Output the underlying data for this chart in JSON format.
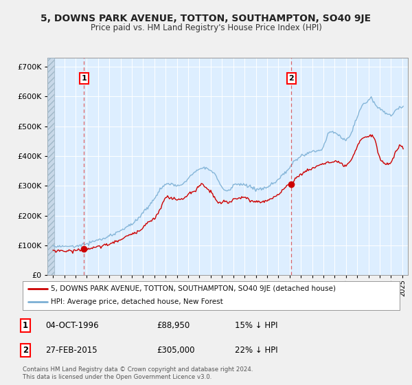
{
  "title": "5, DOWNS PARK AVENUE, TOTTON, SOUTHAMPTON, SO40 9JE",
  "subtitle": "Price paid vs. HM Land Registry's House Price Index (HPI)",
  "legend_line1": "5, DOWNS PARK AVENUE, TOTTON, SOUTHAMPTON, SO40 9JE (detached house)",
  "legend_line2": "HPI: Average price, detached house, New Forest",
  "footnote": "Contains HM Land Registry data © Crown copyright and database right 2024.\nThis data is licensed under the Open Government Licence v3.0.",
  "annotation1_label": "1",
  "annotation1_date": "04-OCT-1996",
  "annotation1_price": "£88,950",
  "annotation1_hpi": "15% ↓ HPI",
  "annotation2_label": "2",
  "annotation2_date": "27-FEB-2015",
  "annotation2_price": "£305,000",
  "annotation2_hpi": "22% ↓ HPI",
  "sale1_x": 1996.75,
  "sale1_y": 88950,
  "sale2_x": 2015.15,
  "sale2_y": 305000,
  "vline1_x": 1996.75,
  "vline2_x": 2015.15,
  "ylim": [
    0,
    730000
  ],
  "xlim": [
    1993.5,
    2025.5
  ],
  "red_color": "#cc0000",
  "blue_color": "#7bafd4",
  "blue_fill_color": "#ddeeff",
  "background_color": "#f0f0f0",
  "plot_bg_color": "#ddeeff",
  "hatch_color": "#c8d8e8",
  "title_font": "DejaVu Sans",
  "title_fontsize": 10,
  "subtitle_fontsize": 9
}
